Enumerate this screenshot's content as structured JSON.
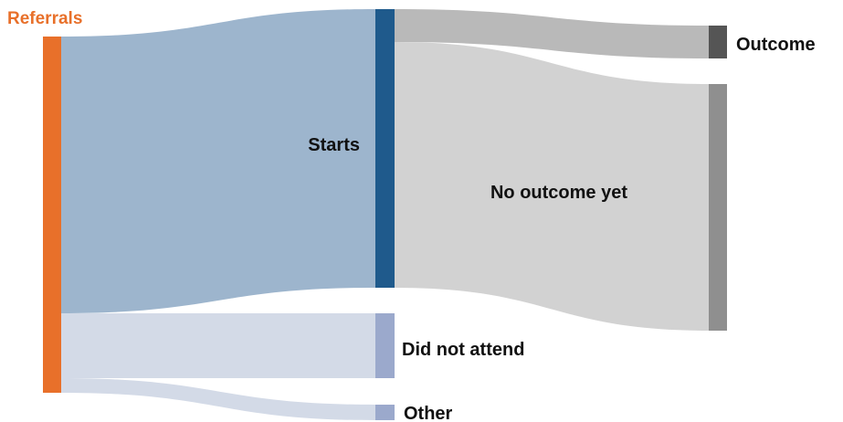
{
  "diagram": {
    "type": "sankey",
    "nodes": [
      {
        "id": "referrals",
        "label": "Referrals",
        "color": "#E8702A"
      },
      {
        "id": "starts",
        "label": "Starts",
        "color": "#1F5A8C"
      },
      {
        "id": "did_not_attend",
        "label": "Did not attend",
        "color": "#9BA9CC"
      },
      {
        "id": "other",
        "label": "Other",
        "color": "#9BA9CC"
      },
      {
        "id": "outcome",
        "label": "Outcome",
        "color": "#555555"
      },
      {
        "id": "no_outcome_yet",
        "label": "No outcome yet",
        "color": "#8F8F8F"
      }
    ],
    "links": [
      {
        "source": "referrals",
        "target": "starts",
        "color": "#9DB5CD"
      },
      {
        "source": "referrals",
        "target": "did_not_attend",
        "color": "#D3DAE7"
      },
      {
        "source": "referrals",
        "target": "other",
        "color": "#D3DAE7"
      },
      {
        "source": "starts",
        "target": "outcome",
        "color": "#B9B9B9"
      },
      {
        "source": "starts",
        "target": "no_outcome_yet",
        "color": "#D2D2D2"
      }
    ]
  }
}
